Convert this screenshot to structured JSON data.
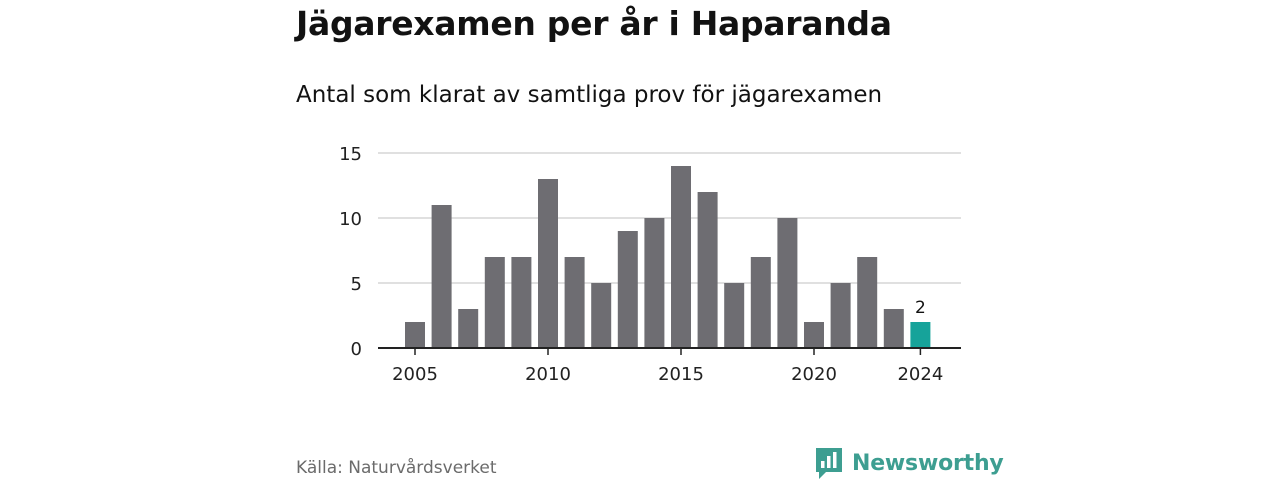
{
  "title": "Jägarexamen per år i Haparanda",
  "subtitle": "Antal som klarat av samtliga prov för jägarexamen",
  "source": "Källa: Naturvårdsverket",
  "brand": {
    "name": "Newsworthy",
    "icon": "bar-chart-logo-icon",
    "color": "#3d9e91"
  },
  "colors": {
    "bar": "#6e6d72",
    "highlight": "#16a39a",
    "grid": "#d6d6d6",
    "axis": "#222222"
  },
  "chart_data": {
    "type": "bar",
    "title": "Jägarexamen per år i Haparanda",
    "subtitle": "Antal som klarat av samtliga prov för jägarexamen",
    "categories": [
      2005,
      2006,
      2007,
      2008,
      2009,
      2010,
      2011,
      2012,
      2013,
      2014,
      2015,
      2016,
      2017,
      2018,
      2019,
      2020,
      2021,
      2022,
      2023,
      2024
    ],
    "values": [
      2,
      11,
      3,
      7,
      7,
      13,
      7,
      5,
      9,
      10,
      14,
      12,
      5,
      7,
      10,
      2,
      5,
      7,
      3,
      2
    ],
    "highlight_index": 19,
    "highlight_label": "2",
    "x_ticks": [
      2005,
      2010,
      2015,
      2020,
      2024
    ],
    "y_ticks": [
      0,
      5,
      10,
      15
    ],
    "ylim": [
      0,
      15
    ],
    "grid": true,
    "xlabel": "",
    "ylabel": ""
  }
}
